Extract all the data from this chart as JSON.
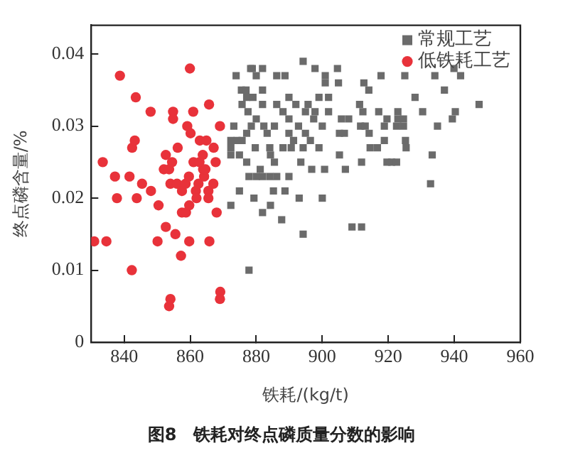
{
  "chart_data": {
    "type": "scatter",
    "xlabel": "铁耗/(kg/t)",
    "ylabel": "终点磷含量/%",
    "annotations": [
      "图8　铁耗对终点磷质量分数的影响"
    ],
    "xlim": [
      830,
      960
    ],
    "xticks": [
      840,
      860,
      880,
      900,
      920,
      940,
      960
    ],
    "ylim": [
      0,
      0.044
    ],
    "yticks": [
      0,
      0.01,
      0.02,
      0.03,
      0.04
    ],
    "grid": false,
    "legend": "top right",
    "series": [
      {
        "name": "常规工艺",
        "color": "#6b6b6b",
        "marker": "square",
        "x": [
          873.9,
          875.5,
          876.9,
          878.8,
          880,
          877.1,
          875.7,
          873.2,
          872.3,
          872.3,
          872.3,
          874.2,
          875.7,
          877.1,
          878.5,
          877.1,
          874.9,
          872.3,
          874.9,
          879.3,
          877.8,
          877.8,
          880,
          880,
          878.3,
          881.9,
          886.2,
          888.7,
          894.2,
          897.8,
          900.9,
          900.9,
          904.6,
          904.9,
          912.6,
          914.1,
          917.8,
          925,
          934.1,
          939.9,
          941.9,
          937,
          928.1,
          947.5,
          930.4,
          940.3,
          939.4,
          934.9,
          881.9,
          879,
          881.9,
          886.2,
          889.9,
          892,
          895.7,
          899,
          901.9,
          877.5,
          888.1,
          894.9,
          897.8,
          901.9,
          911.3,
          912.3,
          917.1,
          922.9,
          889.9,
          897.4,
          905.8,
          908,
          919.6,
          922.9,
          924.6,
          882.3,
          885.5,
          892.8,
          900,
          911.6,
          913,
          918.8,
          922.5,
          924.6,
          883.3,
          889.9,
          894.9,
          905.2,
          906.7,
          914.2,
          891.3,
          896.4,
          918.8,
          925.2,
          879.7,
          884.1,
          888.1,
          890.6,
          894.2,
          899,
          914.5,
          916.7,
          925.4,
          884.3,
          905.2,
          933.3,
          885.5,
          893.5,
          911.9,
          919.6,
          921,
          922.5,
          896.8,
          900.7,
          907,
          881.2,
          881.9,
          884.1,
          886.2,
          889.9,
          932.8,
          885.2,
          888.7,
          893,
          900,
          884.3,
          881.9,
          887.7,
          909,
          911.9,
          894.2
        ],
        "values": [
          0.037,
          0.035,
          0.035,
          0.038,
          0.037,
          0.034,
          0.033,
          0.03,
          0.028,
          0.027,
          0.026,
          0.028,
          0.028,
          0.029,
          0.03,
          0.025,
          0.026,
          0.019,
          0.021,
          0.02,
          0.01,
          0.023,
          0.023,
          0.031,
          0.038,
          0.038,
          0.037,
          0.037,
          0.039,
          0.038,
          0.037,
          0.036,
          0.038,
          0.036,
          0.036,
          0.035,
          0.037,
          0.037,
          0.037,
          0.038,
          0.037,
          0.035,
          0.034,
          0.033,
          0.032,
          0.032,
          0.031,
          0.03,
          0.035,
          0.034,
          0.033,
          0.033,
          0.034,
          0.033,
          0.033,
          0.034,
          0.034,
          0.032,
          0.032,
          0.032,
          0.032,
          0.032,
          0.033,
          0.032,
          0.032,
          0.032,
          0.031,
          0.031,
          0.031,
          0.031,
          0.031,
          0.031,
          0.031,
          0.03,
          0.03,
          0.03,
          0.03,
          0.03,
          0.03,
          0.03,
          0.03,
          0.03,
          0.029,
          0.029,
          0.029,
          0.029,
          0.029,
          0.029,
          0.028,
          0.028,
          0.028,
          0.028,
          0.027,
          0.027,
          0.027,
          0.027,
          0.027,
          0.027,
          0.027,
          0.027,
          0.027,
          0.026,
          0.026,
          0.026,
          0.025,
          0.025,
          0.025,
          0.025,
          0.025,
          0.025,
          0.024,
          0.024,
          0.024,
          0.024,
          0.023,
          0.023,
          0.023,
          0.023,
          0.022,
          0.021,
          0.021,
          0.02,
          0.02,
          0.019,
          0.018,
          0.017,
          0.016,
          0.016,
          0.015
        ]
      },
      {
        "name": "低铁耗工艺",
        "color": "#e8323a",
        "marker": "circle",
        "x": [
          830.9,
          834.6,
          833.5,
          837.2,
          837.8,
          838.7,
          841.6,
          842.3,
          842.4,
          843.2,
          843.5,
          843.8,
          845.4,
          848,
          848.1,
          850.1,
          850.4,
          852.6,
          852.6,
          852,
          853.6,
          853.6,
          854,
          854.8,
          854.8,
          854.5,
          854,
          855.5,
          856.2,
          856,
          857.2,
          857.5,
          857.5,
          858.7,
          858.6,
          859.1,
          859.9,
          859.6,
          859.7,
          859.7,
          860.1,
          860.9,
          861,
          861.7,
          861.9,
          862.5,
          862.8,
          862.9,
          863.8,
          863.9,
          864.2,
          864.9,
          864.6,
          865.7,
          865.5,
          865.5,
          865.8,
          867.1,
          867,
          867.7,
          868,
          869,
          869.1,
          869
        ],
        "values": [
          0.014,
          0.014,
          0.025,
          0.023,
          0.02,
          0.037,
          0.023,
          0.01,
          0.027,
          0.028,
          0.034,
          0.02,
          0.022,
          0.032,
          0.021,
          0.014,
          0.019,
          0.016,
          0.026,
          0.024,
          0.024,
          0.005,
          0.006,
          0.032,
          0.031,
          0.025,
          0.022,
          0.015,
          0.027,
          0.022,
          0.012,
          0.021,
          0.018,
          0.018,
          0.022,
          0.03,
          0.038,
          0.023,
          0.014,
          0.019,
          0.029,
          0.032,
          0.025,
          0.021,
          0.02,
          0.022,
          0.025,
          0.028,
          0.026,
          0.024,
          0.023,
          0.028,
          0.024,
          0.033,
          0.021,
          0.02,
          0.014,
          0.027,
          0.022,
          0.025,
          0.018,
          0.03,
          0.007,
          0.006
        ]
      }
    ]
  }
}
